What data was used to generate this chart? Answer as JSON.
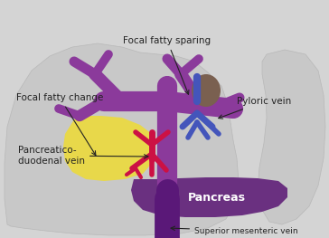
{
  "bg_color": "#d4d4d4",
  "liver_color": "#c8c8c8",
  "fatty_change_color": "#e8d84a",
  "portal_vein_color": "#8b3a9b",
  "pyloric_vein_color": "#4455bb",
  "pyloric_blob_color": "#7a6050",
  "pancreatico_color": "#cc1144",
  "pancreas_color": "#6a3080",
  "smv_color": "#5a1878",
  "text_color": "#222222",
  "label_focal_fatty_change": "Focal fatty change",
  "label_focal_fatty_sparing": "Focal fatty sparing",
  "label_pyloric_vein": "Pyloric vein",
  "label_pancreatico": "Pancreatico-\nduodenal vein",
  "label_pancreas": "Pancreas",
  "label_smv": "Superior mesenteric vein",
  "figsize": [
    3.64,
    2.63
  ],
  "dpi": 100
}
